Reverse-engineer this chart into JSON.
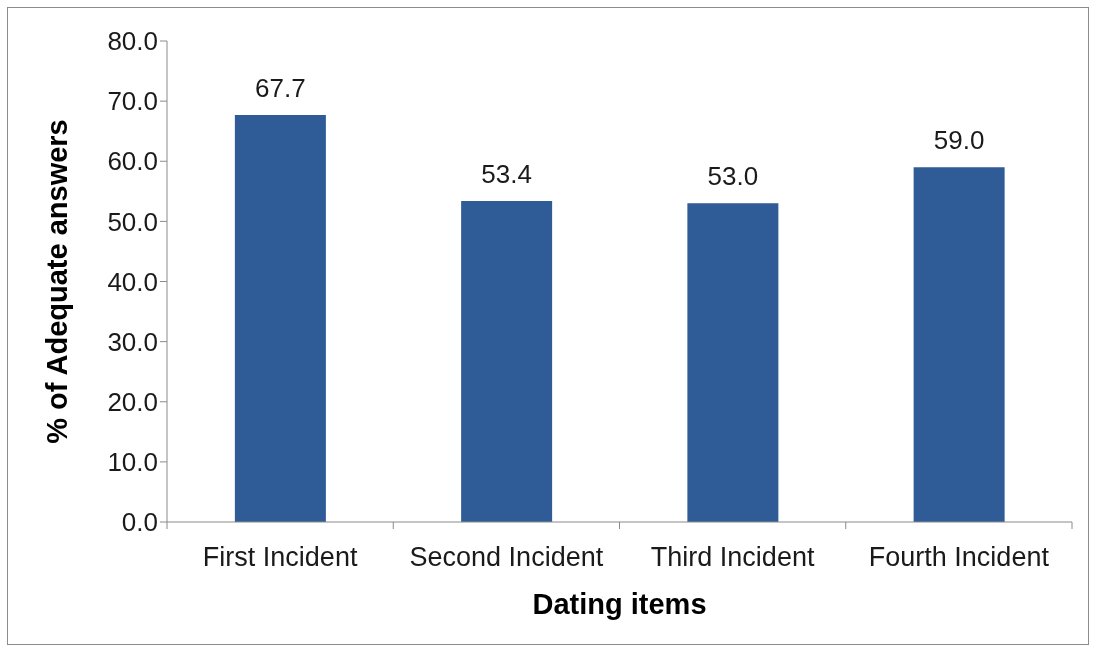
{
  "chart_data": {
    "type": "bar",
    "xlabel": "Dating items",
    "ylabel": "% of Adequate answers",
    "categories": [
      "First Incident",
      "Second Incident",
      "Third Incident",
      "Fourth Incident"
    ],
    "values": [
      67.7,
      53.4,
      53.0,
      59.0
    ],
    "color": "#2f5b97",
    "value_labels": [
      "67.7",
      "53.4",
      "53.0",
      "59.0"
    ],
    "ylim": [
      0,
      80
    ],
    "yticks": [
      {
        "value": 0,
        "label": "0.0"
      },
      {
        "value": 10,
        "label": "10.0"
      },
      {
        "value": 20,
        "label": "20.0"
      },
      {
        "value": 30,
        "label": "30.0"
      },
      {
        "value": 40,
        "label": "40.0"
      },
      {
        "value": 50,
        "label": "50.0"
      },
      {
        "value": 60,
        "label": "60.0"
      },
      {
        "value": 70,
        "label": "70.0"
      },
      {
        "value": 80,
        "label": "80.0"
      }
    ]
  }
}
